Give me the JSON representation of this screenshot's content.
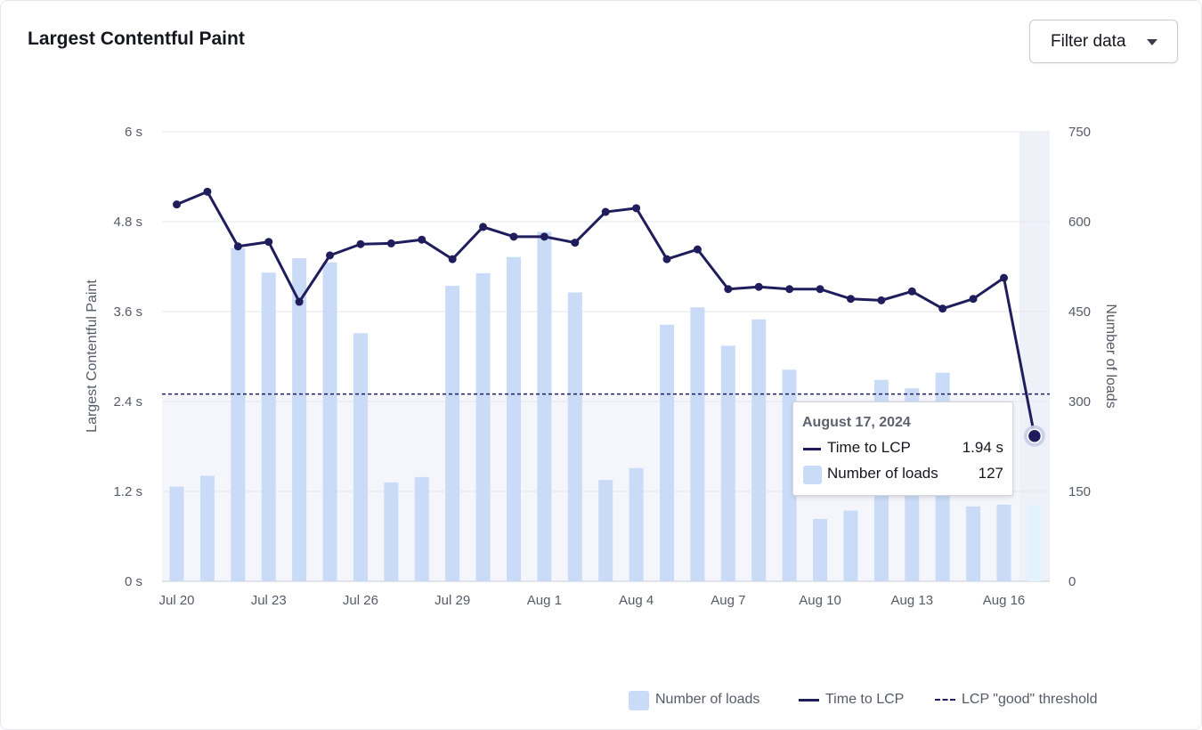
{
  "header": {
    "title": "Largest Contentful Paint",
    "filter_label": "Filter data"
  },
  "chart_data": {
    "type": "bar+line",
    "title": "Largest Contentful Paint",
    "dates": [
      "Jul 20",
      "Jul 21",
      "Jul 22",
      "Jul 23",
      "Jul 24",
      "Jul 25",
      "Jul 26",
      "Jul 27",
      "Jul 28",
      "Jul 29",
      "Jul 30",
      "Jul 31",
      "Aug 1",
      "Aug 2",
      "Aug 3",
      "Aug 4",
      "Aug 5",
      "Aug 6",
      "Aug 7",
      "Aug 8",
      "Aug 9",
      "Aug 10",
      "Aug 11",
      "Aug 12",
      "Aug 13",
      "Aug 14",
      "Aug 15",
      "Aug 16",
      "Aug 17"
    ],
    "x_tick_labels": [
      "Jul 20",
      "Jul 23",
      "Jul 26",
      "Jul 29",
      "Aug 1",
      "Aug 4",
      "Aug 7",
      "Aug 10",
      "Aug 13",
      "Aug 16"
    ],
    "x_tick_indices": [
      0,
      3,
      6,
      9,
      12,
      15,
      18,
      21,
      24,
      27
    ],
    "series": [
      {
        "name": "Time to LCP",
        "type": "line",
        "axis": "left",
        "unit": "s",
        "values": [
          5.03,
          5.2,
          4.47,
          4.53,
          3.73,
          4.35,
          4.5,
          4.51,
          4.56,
          4.3,
          4.73,
          4.6,
          4.6,
          4.52,
          4.93,
          4.98,
          4.3,
          4.43,
          3.9,
          3.93,
          3.9,
          3.9,
          3.77,
          3.75,
          3.87,
          3.64,
          3.77,
          4.05,
          1.94
        ]
      },
      {
        "name": "Number of loads",
        "type": "bar",
        "axis": "right",
        "values": [
          158,
          176,
          556,
          515,
          539,
          532,
          414,
          165,
          174,
          493,
          514,
          541,
          583,
          482,
          169,
          189,
          428,
          457,
          393,
          437,
          353,
          104,
          118,
          336,
          322,
          348,
          125,
          128,
          127
        ]
      }
    ],
    "threshold": {
      "name": "LCP \"good\" threshold",
      "value": 2.5
    },
    "y_left": {
      "label": "Largest Contentful Paint",
      "min": 0,
      "max": 6,
      "ticks": [
        0,
        1.2,
        2.4,
        3.6,
        4.8,
        6
      ],
      "tick_labels": [
        "0 s",
        "1.2 s",
        "2.4 s",
        "3.6 s",
        "4.8 s",
        "6 s"
      ]
    },
    "y_right": {
      "label": "Number of loads",
      "min": 0,
      "max": 750,
      "ticks": [
        0,
        150,
        300,
        450,
        600,
        750
      ],
      "tick_labels": [
        "0",
        "150",
        "300",
        "450",
        "600",
        "750"
      ]
    },
    "legend": [
      "Number of loads",
      "Time to LCP",
      "LCP \"good\" threshold"
    ],
    "legend_position": "bottom-right",
    "highlighted_index": 28
  },
  "tooltip": {
    "date": "August 17, 2024",
    "rows": [
      {
        "name": "Time to LCP",
        "value": "1.94 s"
      },
      {
        "name": "Number of loads",
        "value": "127"
      }
    ]
  },
  "legend": {
    "loads": "Number of loads",
    "lcp": "Time to LCP",
    "threshold": "LCP \"good\" threshold"
  },
  "colors": {
    "line": "#1f1d5c",
    "bar": "#cadbf7",
    "bar_highlight": "#e3f3fd",
    "good_zone": "#f4f6fc",
    "hover_band": "#eef1f8",
    "grid": "#e5e7eb"
  }
}
